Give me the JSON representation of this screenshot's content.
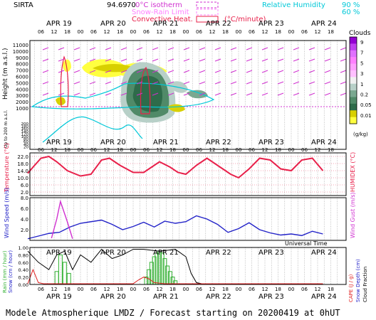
{
  "header": {
    "site": "SIRTA",
    "lon": "94.69",
    "lat": "70",
    "legend_isotherm": "0°C isotherm",
    "legend_snow_rain": "Snow-Rain Limit",
    "legend_convective": "Convective Heat.",
    "legend_convective_unit": "(°C/minute)",
    "legend_rh": "Relative Humidity",
    "rh_90": "90 %",
    "rh_60": "60 %"
  },
  "footer": {
    "title": "Modele Atmospherique LMDZ / Forecast starting on 20200419 at 0hUT"
  },
  "colors": {
    "temperature": "#e8204a",
    "humidex": "#e8204a",
    "wind_speed": "#2222c8",
    "wind_gust": "#d030d0",
    "rain": "#30b030",
    "snow": "#2222c8",
    "cape": "#e02020",
    "cloud_fraction": "#000000",
    "rh90": "#00c8d8",
    "isotherm": "#d030d0",
    "grid": "#888888"
  },
  "days": [
    "APR 19",
    "APR 20",
    "APR 21",
    "APR 22",
    "APR 23",
    "APR 24"
  ],
  "hour_ticks": [
    "06",
    "12",
    "18",
    "00",
    "06",
    "12",
    "18",
    "00",
    "06",
    "12",
    "18",
    "00",
    "06",
    "12",
    "18",
    "00",
    "06",
    "12",
    "18",
    "00",
    "06",
    "12",
    "18"
  ],
  "hour_ticks_day1": [
    "06",
    "12",
    "18"
  ],
  "xlabel": "Universal Time",
  "chart_data": [
    {
      "type": "heatmap",
      "title": "Clouds",
      "ylabel": "Height (m a.s.l.)",
      "ylabel2": "Up to 200 m a.s.l.",
      "yticks_high": [
        "11000",
        "10000",
        "9000",
        "8000",
        "7000",
        "6000",
        "5000",
        "4000",
        "3000",
        "2000",
        "1000"
      ],
      "yticks_low": [
        "200",
        "180",
        "160",
        "140",
        "120",
        "100",
        "80",
        "60",
        "40",
        "20"
      ],
      "colorbar_label": "(g/kg)",
      "colorbar_ticks": [
        "9",
        "7",
        "5",
        "3",
        "1",
        "0.2",
        "0.05",
        "0.01"
      ],
      "colorbar_colors": [
        "#9400d3",
        "#c040f0",
        "#e070ff",
        "#ff80ff",
        "#ffa0ff",
        "#ffc0ff",
        "#f0f0f0",
        "#b8d0c8",
        "#7aa890",
        "#508a68",
        "#2e6b4a",
        "#d8d000",
        "#ffff40"
      ]
    },
    {
      "type": "line",
      "ylabel": "Temperature (°C)",
      "ylabel2": "HUMIDEX (°C)",
      "yticks": [
        "22.0",
        "18.0",
        "14.0",
        "10.0",
        "6.0",
        "2.0"
      ],
      "ylim": [
        0,
        24
      ],
      "series": [
        {
          "key": "temperature",
          "x": [
            0,
            0.1,
            0.25,
            0.4,
            0.55,
            0.75,
            1.0,
            1.2,
            1.4,
            1.55,
            1.75,
            2.0,
            2.2,
            2.35,
            2.5,
            2.7,
            2.85,
            3.0,
            3.2,
            3.4,
            3.6,
            3.85,
            4.0,
            4.2,
            4.4,
            4.6,
            4.8,
            5.0,
            5.2,
            5.4,
            5.6
          ],
          "y": [
            12.5,
            16,
            21,
            22,
            19,
            14,
            11,
            12,
            20,
            21,
            17,
            13,
            13,
            16,
            19,
            16,
            13,
            12,
            17,
            21,
            17,
            12,
            10,
            15,
            21,
            20,
            15,
            14,
            20,
            21,
            14
          ]
        }
      ]
    },
    {
      "type": "line",
      "ylabel": "Wind Speed (m/s)",
      "ylabel2": "Wind Gust (m/s)",
      "yticks": [
        "8.0",
        "6.0",
        "4.0",
        "2.0"
      ],
      "ylim": [
        0,
        8
      ],
      "series": [
        {
          "key": "wind_speed",
          "x": [
            0,
            0.2,
            0.4,
            0.6,
            0.8,
            1.0,
            1.2,
            1.4,
            1.6,
            1.8,
            2.0,
            2.2,
            2.4,
            2.6,
            2.8,
            3.0,
            3.2,
            3.4,
            3.6,
            3.8,
            4.0,
            4.2,
            4.4,
            4.6,
            4.8,
            5.0,
            5.2,
            5.4,
            5.6
          ],
          "y": [
            0.3,
            0.8,
            1.3,
            1.5,
            2.5,
            3.2,
            3.5,
            3.8,
            3.0,
            2.0,
            2.6,
            3.4,
            2.5,
            3.6,
            3.2,
            3.5,
            4.6,
            4.0,
            3.0,
            1.5,
            2.2,
            3.3,
            2.0,
            1.4,
            1.0,
            1.2,
            0.9,
            1.7,
            1.2
          ]
        },
        {
          "key": "wind_gust",
          "x": [
            0.45,
            0.55,
            0.62,
            0.75,
            0.85
          ],
          "y": [
            0.4,
            4.0,
            7.3,
            3.5,
            0.3
          ]
        }
      ]
    },
    {
      "type": "bar",
      "ylabel": "Rain (mm / hour)",
      "ylabel_snow": "Snow (cm / hour)",
      "ylabel2": "CAPE (J / g)",
      "ylabel3": "Snow Depth (cm)",
      "ylabel4": "Cloud Fraction",
      "yticks": [
        "1.00",
        "0.80",
        "0.60",
        "0.40",
        "0.20",
        "0.00"
      ],
      "ylim": [
        0,
        1
      ],
      "rain_bars": {
        "x": [
          0.55,
          0.62,
          0.7,
          0.78,
          2.25,
          2.3,
          2.35,
          2.4,
          2.45,
          2.5,
          2.55,
          2.6,
          2.65,
          2.7,
          2.75,
          2.8
        ],
        "y": [
          0.35,
          0.8,
          0.6,
          0.3,
          0.2,
          0.4,
          0.6,
          0.75,
          0.85,
          0.9,
          0.85,
          0.7,
          0.5,
          0.35,
          0.2,
          0.1
        ]
      },
      "cloud_fraction": {
        "x": [
          0,
          0.2,
          0.4,
          0.55,
          0.7,
          0.85,
          1.0,
          1.2,
          1.4,
          1.6,
          1.8,
          2.0,
          2.2,
          2.5,
          2.8,
          3.0,
          3.1,
          3.2,
          3.3,
          3.4,
          3.5,
          3.6,
          3.8,
          4.0,
          4.2,
          4.4,
          4.6,
          4.8,
          5.0,
          5.2,
          5.4,
          5.6
        ],
        "y": [
          0.9,
          0.6,
          0.4,
          0.8,
          0.9,
          0.4,
          0.8,
          0.6,
          0.95,
          0.7,
          0.8,
          0.95,
          0.95,
          0.9,
          0.95,
          0.75,
          0.3,
          0.05,
          0.02,
          0.02,
          0.02,
          0.02,
          0.02,
          0.02,
          0.02,
          0.02,
          0.02,
          0.02,
          0.02,
          0.02,
          0.02,
          0.02
        ]
      },
      "cape": {
        "x": [
          0,
          0.1,
          0.2,
          0.3,
          0.5,
          0.7,
          1.0,
          1.5,
          2.0,
          2.1,
          2.2,
          2.3,
          2.4,
          2.6,
          3.0,
          4.0,
          5.0,
          5.6
        ],
        "y": [
          0.02,
          0.4,
          0.05,
          0.02,
          0.02,
          0.02,
          0.02,
          0.02,
          0.02,
          0.12,
          0.2,
          0.15,
          0.05,
          0.02,
          0.02,
          0.02,
          0.02,
          0.02
        ]
      }
    }
  ]
}
